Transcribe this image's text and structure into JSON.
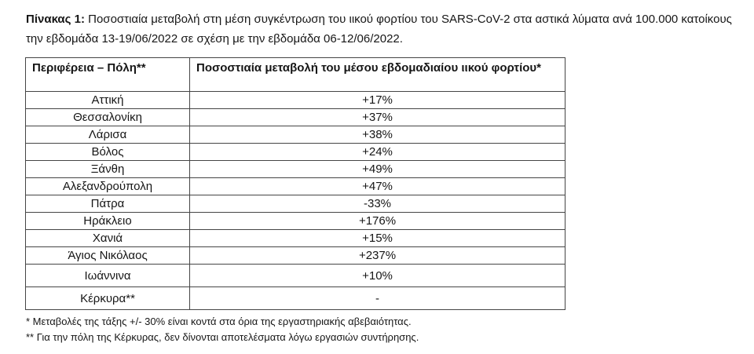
{
  "page": {
    "title_prefix": "Πίνακας 1:",
    "title_text": " Ποσοστιαία μεταβολή στη μέση συγκέντρωση του ιικού φορτίου του SARS-CoV-2 στα αστικά λύματα ανά 100.000 κατοίκους την εβδομάδα 13-19/06/2022 σε σχέση με την εβδομάδα 06-12/06/2022."
  },
  "table": {
    "headers": [
      "Περιφέρεια – Πόλη**",
      "Ποσοστιαία μεταβολή του μέσου εβδομαδιαίου ιικού φορτίου*"
    ],
    "rows": [
      {
        "city": "Αττική",
        "change": "+17%"
      },
      {
        "city": "Θεσσαλονίκη",
        "change": "+37%"
      },
      {
        "city": "Λάρισα",
        "change": "+38%"
      },
      {
        "city": "Βόλος",
        "change": "+24%"
      },
      {
        "city": "Ξάνθη",
        "change": "+49%"
      },
      {
        "city": "Αλεξανδρούπολη",
        "change": "+47%"
      },
      {
        "city": "Πάτρα",
        "change": "-33%"
      },
      {
        "city": "Ηράκλειο",
        "change": "+176%"
      },
      {
        "city": "Χανιά",
        "change": "+15%"
      },
      {
        "city": "Άγιος Νικόλαος",
        "change": "+237%"
      },
      {
        "city": "Ιωάννινα",
        "change": "+10%"
      },
      {
        "city": "Κέρκυρα**",
        "change": "-"
      }
    ],
    "tall_row_count": 2
  },
  "footnotes": [
    "* Μεταβολές της τάξης +/- 30% είναι κοντά στα όρια της εργαστηριακής αβεβαιότητας.",
    "** Για την πόλη της Κέρκυρας, δεν δίνονται αποτελέσματα λόγω εργασιών συντήρησης."
  ],
  "colors": {
    "text": "#161616",
    "border": "#454545",
    "background": "#ffffff"
  }
}
